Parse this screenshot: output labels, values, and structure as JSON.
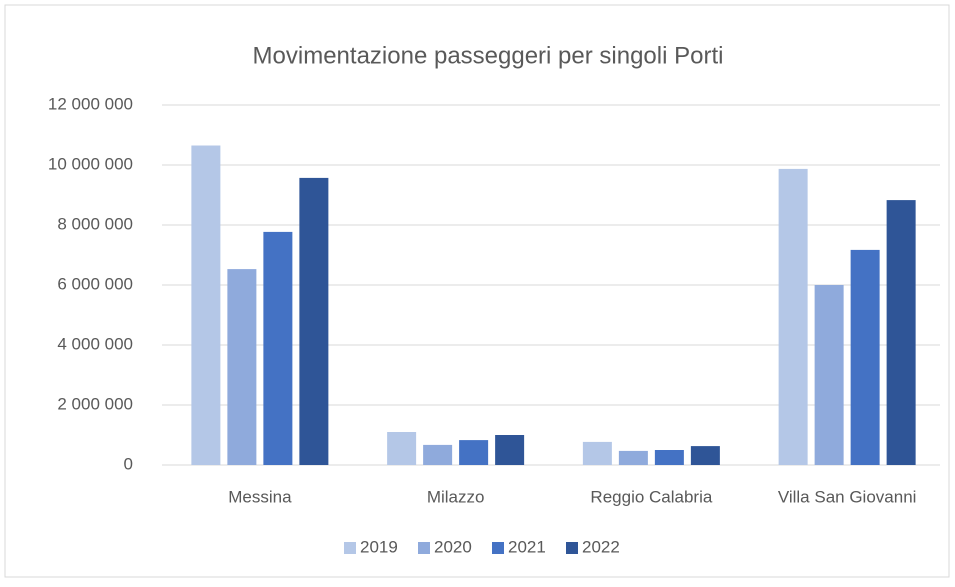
{
  "chart_data": {
    "type": "bar",
    "title": "Movimentazione passeggeri per singoli Porti",
    "categories": [
      "Messina",
      "Milazzo",
      "Reggio Calabria",
      "Villa San Giovanni"
    ],
    "series": [
      {
        "name": "2019",
        "color": "#b4c7e7",
        "values": [
          10650000,
          1100000,
          770000,
          9870000
        ]
      },
      {
        "name": "2020",
        "color": "#8faadc",
        "values": [
          6530000,
          670000,
          470000,
          6000000
        ]
      },
      {
        "name": "2021",
        "color": "#4472c4",
        "values": [
          7770000,
          830000,
          500000,
          7170000
        ]
      },
      {
        "name": "2022",
        "color": "#2f5597",
        "values": [
          9570000,
          1000000,
          630000,
          8830000
        ]
      }
    ],
    "ylim": [
      0,
      12000000
    ],
    "yticks": [
      0,
      {
        "value": 2000000,
        "label": "2 000 000"
      },
      {
        "value": 4000000,
        "label": "4 000 000"
      },
      {
        "value": 6000000,
        "label": "6 000 000"
      },
      {
        "value": 8000000,
        "label": "8 000 000"
      },
      {
        "value": 10000000,
        "label": "10 000 000"
      },
      {
        "value": 12000000,
        "label": "12 000 000"
      }
    ],
    "grid": true,
    "legend": "bottom"
  }
}
